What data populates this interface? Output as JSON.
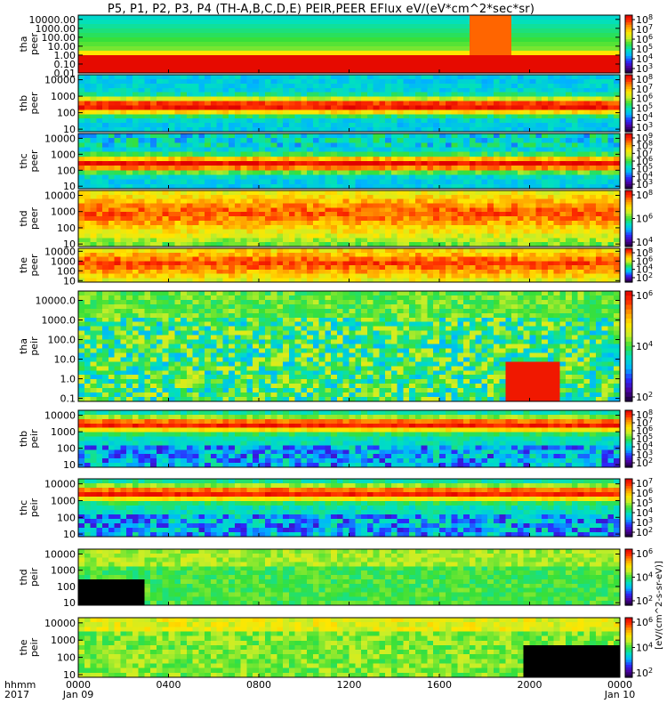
{
  "title": "P5, P1, P2, P3, P4 (TH-A,B,C,D,E) PEIR,PEER EFlux eV/(eV*cm^2*sec*sr)",
  "chart_data": {
    "type": "heatmap",
    "x_range": [
      "2017-01-09 00:00",
      "2017-01-10 00:00"
    ],
    "x_ticks": [
      "0000",
      "0400",
      "0800",
      "1200",
      "1600",
      "2000",
      "0000"
    ],
    "x_tick_dates": [
      "Jan 09",
      "Jan 10"
    ],
    "x_axis_label_top": "hhmm",
    "x_axis_label_bottom": "2017",
    "colorbar_label": "[eV/(cm^2-s-sr-eV)]",
    "panels": [
      {
        "probe": "tha",
        "species": "peer",
        "y_ticks": [
          "10000.00",
          "1000.00",
          "100.00",
          "10.00",
          "1.00",
          "0.10",
          "0.01"
        ],
        "y_log_range": [
          0.01,
          30000
        ],
        "cbar_ticks": [
          "10^8",
          "10^7",
          "10^6",
          "10^5",
          "10^4",
          "10^3"
        ]
      },
      {
        "probe": "thb",
        "species": "peer",
        "y_ticks": [
          "10000",
          "1000",
          "100",
          "10"
        ],
        "y_log_range": [
          7,
          20000
        ],
        "cbar_ticks": [
          "10^8",
          "10^7",
          "10^6",
          "10^5",
          "10^4",
          "10^3"
        ]
      },
      {
        "probe": "thc",
        "species": "peer",
        "y_ticks": [
          "10000",
          "1000",
          "100",
          "10"
        ],
        "y_log_range": [
          7,
          20000
        ],
        "cbar_ticks": [
          "10^9",
          "10^8",
          "10^7",
          "10^6",
          "10^5",
          "10^4",
          "10^3"
        ]
      },
      {
        "probe": "thd",
        "species": "peer",
        "y_ticks": [
          "10000",
          "1000",
          "100",
          "10"
        ],
        "y_log_range": [
          7,
          20000
        ],
        "cbar_ticks": [
          "10^8",
          "10^6",
          "10^4"
        ]
      },
      {
        "probe": "the",
        "species": "peer",
        "y_ticks": [
          "10000",
          "1000",
          "100",
          "10"
        ],
        "y_log_range": [
          7,
          20000
        ],
        "cbar_ticks": [
          "10^8",
          "10^6",
          "10^4",
          "10^2"
        ]
      },
      {
        "probe": "tha",
        "species": "peir",
        "y_ticks": [
          "10000.0",
          "1000.0",
          "100.0",
          "10.0",
          "1.0",
          "0.1"
        ],
        "y_log_range": [
          0.07,
          30000
        ],
        "cbar_ticks": [
          "10^6",
          "10^4",
          "10^2"
        ]
      },
      {
        "probe": "thb",
        "species": "peir",
        "y_ticks": [
          "10000",
          "1000",
          "100",
          "10"
        ],
        "y_log_range": [
          7,
          20000
        ],
        "cbar_ticks": [
          "10^8",
          "10^7",
          "10^6",
          "10^5",
          "10^4",
          "10^3",
          "10^2"
        ]
      },
      {
        "probe": "thc",
        "species": "peir",
        "y_ticks": [
          "10000",
          "1000",
          "100",
          "10"
        ],
        "y_log_range": [
          7,
          20000
        ],
        "cbar_ticks": [
          "10^7",
          "10^6",
          "10^5",
          "10^4",
          "10^3",
          "10^2"
        ]
      },
      {
        "probe": "thd",
        "species": "peir",
        "y_ticks": [
          "10000",
          "1000",
          "100",
          "10"
        ],
        "y_log_range": [
          7,
          20000
        ],
        "cbar_ticks": [
          "10^6",
          "10^4",
          "10^2"
        ]
      },
      {
        "probe": "the",
        "species": "peir",
        "y_ticks": [
          "10000",
          "1000",
          "100",
          "10"
        ],
        "y_log_range": [
          7,
          20000
        ],
        "cbar_ticks": [
          "10^6",
          "10^4",
          "10^2"
        ]
      }
    ],
    "colormap": [
      "#1a0033",
      "#4b00a0",
      "#2b2bff",
      "#00b4ff",
      "#00e0c0",
      "#38e038",
      "#c8ee28",
      "#ffe600",
      "#ff9a00",
      "#ff3000",
      "#e00000"
    ]
  }
}
